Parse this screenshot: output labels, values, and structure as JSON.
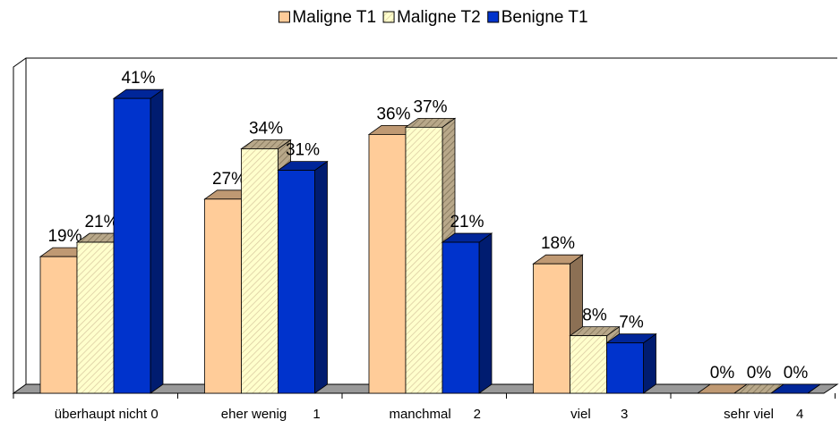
{
  "chart_data": {
    "type": "bar3d",
    "categories": [
      "überhaupt nicht 0",
      "eher wenig       1",
      "manchmal      2",
      "viel        3",
      "sehr viel      4"
    ],
    "series": [
      {
        "name": "Maligne T1",
        "color": "#ffcc99",
        "values": [
          19,
          27,
          36,
          18,
          0
        ],
        "value_labels": [
          "19%",
          "27%",
          "36%",
          "18%",
          "0%"
        ]
      },
      {
        "name": "Maligne T2",
        "color": "#ffffcc",
        "hatch": true,
        "values": [
          21,
          34,
          37,
          8,
          0
        ],
        "value_labels": [
          "21%",
          "34%",
          "37%",
          "8%",
          "0%"
        ]
      },
      {
        "name": "Benigne T1",
        "color": "#0033cc",
        "values": [
          41,
          31,
          21,
          7,
          0
        ],
        "value_labels": [
          "41%",
          "31%",
          "21%",
          "7%",
          "0%"
        ]
      }
    ],
    "ylim": [
      0,
      45
    ],
    "legend": "top"
  }
}
